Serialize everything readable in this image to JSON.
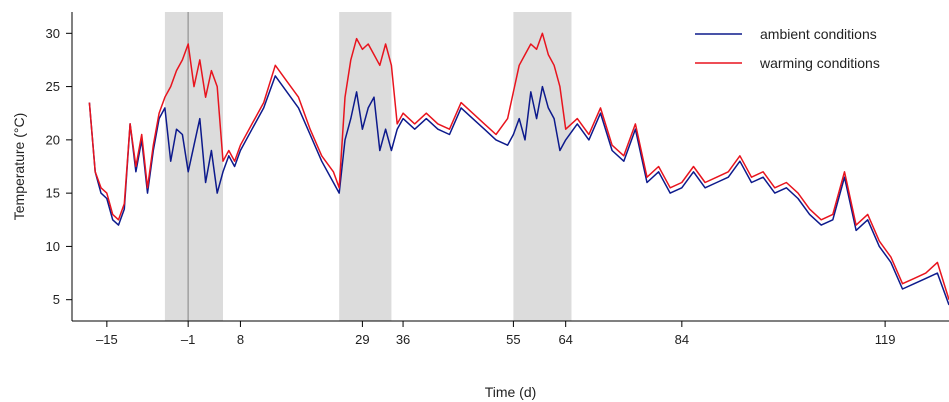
{
  "chart_data": {
    "type": "line",
    "xlabel": "Time (d)",
    "ylabel": "Temperature (°C)",
    "xlim": [
      -21,
      130
    ],
    "ylim": [
      3,
      32
    ],
    "x_ticks": [
      -15,
      -1,
      8,
      29,
      36,
      55,
      64,
      84,
      119
    ],
    "y_ticks": [
      5,
      10,
      15,
      20,
      25,
      30
    ],
    "legend_position": "top-right",
    "grid": false,
    "colors": {
      "ambient": "#0d1a8c",
      "warming": "#e8141e",
      "shade": "#dcdcdc",
      "marker": "#a0a0a0"
    },
    "shaded_periods": [
      [
        -5,
        5
      ],
      [
        25,
        34
      ],
      [
        55,
        65
      ]
    ],
    "vertical_marker": -1,
    "series": [
      {
        "name": "ambient conditions",
        "x": [
          -18,
          -17,
          -16,
          -15,
          -14,
          -13,
          -12,
          -11,
          -10,
          -9,
          -8,
          -7,
          -6,
          -5,
          -4,
          -3,
          -2,
          -1,
          0,
          1,
          2,
          3,
          4,
          5,
          6,
          7,
          8,
          10,
          12,
          14,
          16,
          18,
          20,
          22,
          24,
          25,
          26,
          27,
          28,
          29,
          30,
          31,
          32,
          33,
          34,
          35,
          36,
          38,
          40,
          42,
          44,
          46,
          48,
          50,
          52,
          54,
          55,
          56,
          57,
          58,
          59,
          60,
          61,
          62,
          63,
          64,
          66,
          68,
          70,
          72,
          74,
          76,
          78,
          80,
          82,
          84,
          86,
          88,
          90,
          92,
          94,
          96,
          98,
          100,
          102,
          104,
          106,
          108,
          110,
          112,
          114,
          116,
          118,
          120,
          122,
          124,
          126,
          128,
          130
        ],
        "y": [
          23.5,
          17,
          15,
          14.5,
          12.5,
          12,
          13.5,
          21.5,
          17,
          20,
          15,
          19,
          22,
          23,
          18,
          21,
          20.5,
          17,
          19.5,
          22,
          16,
          19,
          15,
          17,
          18.5,
          17.5,
          19,
          21,
          23,
          26,
          24.5,
          23,
          20.5,
          18,
          16,
          15,
          20,
          22,
          24.5,
          21,
          23,
          24,
          19,
          21,
          19,
          21,
          22,
          21,
          22,
          21,
          20.5,
          23,
          22,
          21,
          20,
          19.5,
          20.5,
          22,
          20,
          24.5,
          22,
          25,
          23,
          22,
          19,
          20,
          21.5,
          20,
          22.5,
          19,
          18,
          21,
          16,
          17,
          15,
          15.5,
          17,
          15.5,
          16,
          16.5,
          18,
          16,
          16.5,
          15,
          15.5,
          14.5,
          13,
          12,
          12.5,
          16.5,
          11.5,
          12.5,
          10,
          8.5,
          6,
          6.5,
          7,
          7.5,
          4.5
        ]
      },
      {
        "name": "warming conditions",
        "x": [
          -18,
          -17,
          -16,
          -15,
          -14,
          -13,
          -12,
          -11,
          -10,
          -9,
          -8,
          -7,
          -6,
          -5,
          -4,
          -3,
          -2,
          -1,
          0,
          1,
          2,
          3,
          4,
          5,
          6,
          7,
          8,
          10,
          12,
          14,
          16,
          18,
          20,
          22,
          24,
          25,
          26,
          27,
          28,
          29,
          30,
          31,
          32,
          33,
          34,
          35,
          36,
          38,
          40,
          42,
          44,
          46,
          48,
          50,
          52,
          54,
          55,
          56,
          57,
          58,
          59,
          60,
          61,
          62,
          63,
          64,
          66,
          68,
          70,
          72,
          74,
          76,
          78,
          80,
          82,
          84,
          86,
          88,
          90,
          92,
          94,
          96,
          98,
          100,
          102,
          104,
          106,
          108,
          110,
          112,
          114,
          116,
          118,
          120,
          122,
          124,
          126,
          128,
          130
        ],
        "y": [
          23.5,
          17,
          15.5,
          15,
          13,
          12.5,
          14,
          21.5,
          17.5,
          20.5,
          15.5,
          19.5,
          22.5,
          24,
          25,
          26.5,
          27.5,
          29,
          25,
          27.5,
          24,
          26.5,
          25,
          18,
          19,
          18,
          19.5,
          21.5,
          23.5,
          27,
          25.5,
          24,
          21,
          18.5,
          17,
          15.5,
          24,
          27.5,
          29.5,
          28.5,
          29,
          28,
          27,
          29,
          27,
          21.5,
          22.5,
          21.5,
          22.5,
          21.5,
          21,
          23.5,
          22.5,
          21.5,
          20.5,
          22,
          24.5,
          27,
          28,
          29,
          28.5,
          30,
          28,
          27,
          25,
          21,
          22,
          20.5,
          23,
          19.5,
          18.5,
          21.5,
          16.5,
          17.5,
          15.5,
          16,
          17.5,
          16,
          16.5,
          17,
          18.5,
          16.5,
          17,
          15.5,
          16,
          15,
          13.5,
          12.5,
          13,
          17,
          12,
          13,
          10.5,
          9,
          6.5,
          7,
          7.5,
          8.5,
          5
        ]
      }
    ]
  }
}
